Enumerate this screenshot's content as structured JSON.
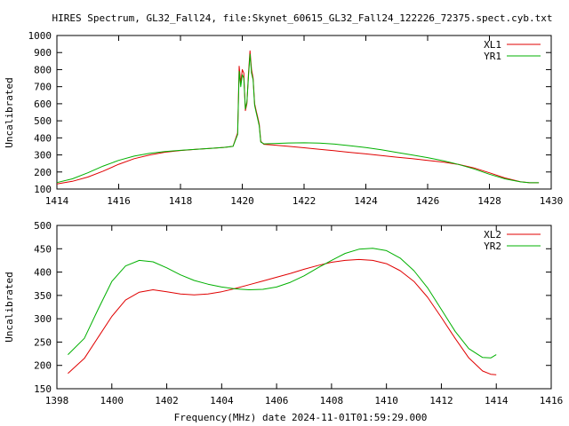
{
  "figure": {
    "title": "HIRES Spectrum, GL32_Fall24, file:Skynet_60615_GL32_Fall24_122226_72375.spect.cyb.txt",
    "xlabel": "Frequency(MHz) date 2024-11-01T01:59:29.000"
  },
  "colors": {
    "red": "#e00000",
    "green": "#00b000",
    "axis": "#000000",
    "background": "#ffffff"
  },
  "chart_data": [
    {
      "type": "line",
      "title": "",
      "xlabel": "",
      "ylabel": "Uncalibrated",
      "xlim": [
        1414,
        1430
      ],
      "ylim": [
        100,
        1000
      ],
      "xticks": [
        1414,
        1416,
        1418,
        1420,
        1422,
        1424,
        1426,
        1428,
        1430
      ],
      "yticks": [
        100,
        200,
        300,
        400,
        500,
        600,
        700,
        800,
        900,
        1000
      ],
      "grid": false,
      "legend": "top-right",
      "series": [
        {
          "name": "XL1",
          "color": "#e00000",
          "points": [
            [
              1414.0,
              130
            ],
            [
              1414.5,
              145
            ],
            [
              1415.0,
              170
            ],
            [
              1415.5,
              205
            ],
            [
              1416.0,
              245
            ],
            [
              1416.5,
              278
            ],
            [
              1417.0,
              300
            ],
            [
              1417.5,
              316
            ],
            [
              1418.0,
              326
            ],
            [
              1418.5,
              333
            ],
            [
              1419.0,
              339
            ],
            [
              1419.4,
              344
            ],
            [
              1419.7,
              350
            ],
            [
              1419.85,
              430
            ],
            [
              1419.9,
              820
            ],
            [
              1419.95,
              720
            ],
            [
              1420.0,
              800
            ],
            [
              1420.05,
              780
            ],
            [
              1420.1,
              560
            ],
            [
              1420.15,
              600
            ],
            [
              1420.2,
              780
            ],
            [
              1420.25,
              910
            ],
            [
              1420.3,
              800
            ],
            [
              1420.35,
              750
            ],
            [
              1420.4,
              600
            ],
            [
              1420.45,
              560
            ],
            [
              1420.5,
              520
            ],
            [
              1420.55,
              480
            ],
            [
              1420.6,
              380
            ],
            [
              1420.7,
              362
            ],
            [
              1421.0,
              358
            ],
            [
              1421.5,
              350
            ],
            [
              1422.0,
              342
            ],
            [
              1422.5,
              333
            ],
            [
              1423.0,
              324
            ],
            [
              1423.5,
              315
            ],
            [
              1424.0,
              306
            ],
            [
              1424.5,
              296
            ],
            [
              1425.0,
              287
            ],
            [
              1425.5,
              278
            ],
            [
              1426.0,
              268
            ],
            [
              1426.5,
              258
            ],
            [
              1427.0,
              244
            ],
            [
              1427.5,
              224
            ],
            [
              1428.0,
              195
            ],
            [
              1428.5,
              165
            ],
            [
              1429.0,
              143
            ],
            [
              1429.3,
              137
            ],
            [
              1429.6,
              137
            ]
          ]
        },
        {
          "name": "YR1",
          "color": "#00b000",
          "points": [
            [
              1414.0,
              138
            ],
            [
              1414.5,
              160
            ],
            [
              1415.0,
              195
            ],
            [
              1415.5,
              235
            ],
            [
              1416.0,
              268
            ],
            [
              1416.5,
              293
            ],
            [
              1417.0,
              309
            ],
            [
              1417.5,
              320
            ],
            [
              1418.0,
              327
            ],
            [
              1418.5,
              333
            ],
            [
              1419.0,
              339
            ],
            [
              1419.4,
              344
            ],
            [
              1419.7,
              350
            ],
            [
              1419.85,
              420
            ],
            [
              1419.9,
              790
            ],
            [
              1419.95,
              700
            ],
            [
              1420.0,
              770
            ],
            [
              1420.05,
              750
            ],
            [
              1420.1,
              570
            ],
            [
              1420.15,
              610
            ],
            [
              1420.2,
              760
            ],
            [
              1420.25,
              890
            ],
            [
              1420.3,
              780
            ],
            [
              1420.35,
              740
            ],
            [
              1420.4,
              590
            ],
            [
              1420.45,
              550
            ],
            [
              1420.5,
              510
            ],
            [
              1420.55,
              470
            ],
            [
              1420.6,
              375
            ],
            [
              1420.7,
              365
            ],
            [
              1421.0,
              367
            ],
            [
              1421.5,
              370
            ],
            [
              1422.0,
              371
            ],
            [
              1422.5,
              369
            ],
            [
              1423.0,
              363
            ],
            [
              1423.5,
              354
            ],
            [
              1424.0,
              343
            ],
            [
              1424.5,
              330
            ],
            [
              1425.0,
              315
            ],
            [
              1425.5,
              300
            ],
            [
              1426.0,
              284
            ],
            [
              1426.5,
              266
            ],
            [
              1427.0,
              244
            ],
            [
              1427.5,
              218
            ],
            [
              1428.0,
              187
            ],
            [
              1428.5,
              160
            ],
            [
              1429.0,
              142
            ],
            [
              1429.3,
              137
            ],
            [
              1429.6,
              137
            ]
          ]
        }
      ]
    },
    {
      "type": "line",
      "title": "",
      "xlabel": "",
      "ylabel": "Uncalibrated",
      "xlim": [
        1398,
        1416
      ],
      "ylim": [
        150,
        500
      ],
      "xticks": [
        1398,
        1400,
        1402,
        1404,
        1406,
        1408,
        1410,
        1412,
        1414,
        1416
      ],
      "yticks": [
        150,
        200,
        250,
        300,
        350,
        400,
        450,
        500
      ],
      "grid": false,
      "legend": "top-right",
      "series": [
        {
          "name": "XL2",
          "color": "#e00000",
          "points": [
            [
              1398.4,
              183
            ],
            [
              1399.0,
              215
            ],
            [
              1399.5,
              260
            ],
            [
              1400.0,
              305
            ],
            [
              1400.5,
              340
            ],
            [
              1401.0,
              357
            ],
            [
              1401.5,
              362
            ],
            [
              1402.0,
              358
            ],
            [
              1402.5,
              353
            ],
            [
              1403.0,
              351
            ],
            [
              1403.5,
              353
            ],
            [
              1404.0,
              358
            ],
            [
              1404.5,
              365
            ],
            [
              1405.0,
              373
            ],
            [
              1405.5,
              381
            ],
            [
              1406.0,
              389
            ],
            [
              1406.5,
              397
            ],
            [
              1407.0,
              406
            ],
            [
              1407.5,
              414
            ],
            [
              1408.0,
              421
            ],
            [
              1408.5,
              425
            ],
            [
              1409.0,
              427
            ],
            [
              1409.5,
              425
            ],
            [
              1410.0,
              418
            ],
            [
              1410.5,
              403
            ],
            [
              1411.0,
              380
            ],
            [
              1411.5,
              346
            ],
            [
              1412.0,
              303
            ],
            [
              1412.5,
              258
            ],
            [
              1413.0,
              216
            ],
            [
              1413.5,
              188
            ],
            [
              1413.8,
              181
            ],
            [
              1414.0,
              180
            ]
          ]
        },
        {
          "name": "YR2",
          "color": "#00b000",
          "points": [
            [
              1398.4,
              223
            ],
            [
              1399.0,
              258
            ],
            [
              1399.5,
              320
            ],
            [
              1400.0,
              380
            ],
            [
              1400.5,
              413
            ],
            [
              1401.0,
              425
            ],
            [
              1401.5,
              422
            ],
            [
              1402.0,
              409
            ],
            [
              1402.5,
              394
            ],
            [
              1403.0,
              382
            ],
            [
              1403.5,
              374
            ],
            [
              1404.0,
              368
            ],
            [
              1404.5,
              364
            ],
            [
              1405.0,
              362
            ],
            [
              1405.5,
              363
            ],
            [
              1406.0,
              368
            ],
            [
              1406.5,
              378
            ],
            [
              1407.0,
              392
            ],
            [
              1407.5,
              409
            ],
            [
              1408.0,
              425
            ],
            [
              1408.5,
              440
            ],
            [
              1409.0,
              449
            ],
            [
              1409.5,
              451
            ],
            [
              1410.0,
              446
            ],
            [
              1410.5,
              430
            ],
            [
              1411.0,
              403
            ],
            [
              1411.5,
              366
            ],
            [
              1412.0,
              320
            ],
            [
              1412.5,
              273
            ],
            [
              1413.0,
              236
            ],
            [
              1413.5,
              217
            ],
            [
              1413.8,
              216
            ],
            [
              1414.0,
              223
            ]
          ]
        }
      ]
    }
  ]
}
